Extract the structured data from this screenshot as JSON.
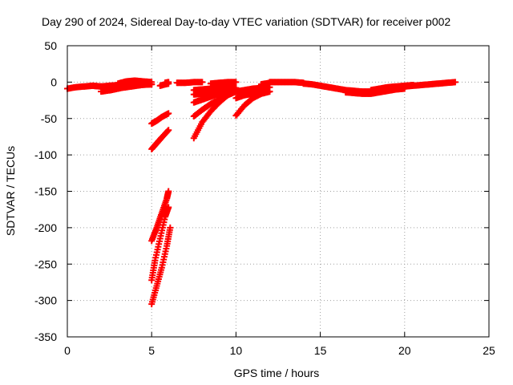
{
  "chart_data": {
    "type": "scatter",
    "title": "Day 290 of 2024, Sidereal Day-to-day VTEC variation (SDTVAR) for receiver p002",
    "xlabel": "GPS time / hours",
    "ylabel": "SDTVAR / TECUs",
    "xlim": [
      0,
      25
    ],
    "ylim": [
      -350,
      50
    ],
    "xticks": [
      0,
      5,
      10,
      15,
      20,
      25
    ],
    "yticks": [
      50,
      0,
      -50,
      -100,
      -150,
      -200,
      -250,
      -300,
      -350
    ],
    "xtick_labels": [
      "0",
      "5",
      "10",
      "15",
      "20",
      "25"
    ],
    "ytick_labels": [
      "50",
      "0",
      "-50",
      "-100",
      "-150",
      "-200",
      "-250",
      "-300",
      "-350"
    ],
    "grid": true,
    "marker": "plus",
    "series": [
      {
        "name": "p002",
        "color": "#ff0000",
        "segments": [
          {
            "x": [
              0.0,
              0.5,
              1.0,
              1.5,
              2.0,
              2.5
            ],
            "y": [
              -9,
              -7,
              -6,
              -5,
              -6,
              -7
            ]
          },
          {
            "x": [
              1.5,
              2.0,
              2.5,
              3.0,
              3.5,
              4.0,
              4.5,
              5.0
            ],
            "y": [
              -5,
              -6,
              -5,
              -4,
              -3,
              -3,
              -3,
              -3
            ]
          },
          {
            "x": [
              2.0,
              2.6,
              3.2,
              3.8,
              4.4,
              5.0
            ],
            "y": [
              -13,
              -11,
              -8,
              -6,
              -4,
              -3
            ]
          },
          {
            "x": [
              3.0,
              3.5,
              4.0,
              4.5,
              5.0
            ],
            "y": [
              -2,
              1,
              2,
              1,
              0
            ]
          },
          {
            "x": [
              5.0,
              5.3,
              5.6,
              6.0
            ],
            "y": [
              -57,
              -53,
              -48,
              -43
            ]
          },
          {
            "x": [
              5.0,
              5.3,
              5.6,
              6.0
            ],
            "y": [
              -92,
              -84,
              -76,
              -66
            ]
          },
          {
            "x": [
              5.0,
              5.3,
              5.6,
              5.9,
              6.0
            ],
            "y": [
              -218,
              -200,
              -180,
              -160,
              -150
            ]
          },
          {
            "x": [
              5.0,
              5.2,
              5.5,
              5.8,
              6.0
            ],
            "y": [
              -272,
              -245,
              -215,
              -185,
              -172
            ]
          },
          {
            "x": [
              5.0,
              5.3,
              5.6,
              5.9,
              6.1
            ],
            "y": [
              -305,
              -280,
              -255,
              -225,
              -200
            ]
          },
          {
            "x": [
              5.5,
              5.8,
              6.0
            ],
            "y": [
              -5,
              -3,
              -2
            ]
          },
          {
            "x": [
              5.8,
              6.0
            ],
            "y": [
              -1,
              0
            ]
          },
          {
            "x": [
              6.5,
              7.0,
              7.5,
              8.0
            ],
            "y": [
              -1,
              -1,
              0,
              0
            ]
          },
          {
            "x": [
              7.5,
              8.0,
              8.5,
              9.0,
              9.5,
              10.0
            ],
            "y": [
              -77,
              -55,
              -40,
              -28,
              -18,
              -12
            ]
          },
          {
            "x": [
              7.5,
              8.0,
              8.5,
              9.0,
              9.5,
              10.0
            ],
            "y": [
              -47,
              -38,
              -30,
              -24,
              -18,
              -13
            ]
          },
          {
            "x": [
              7.5,
              8.0,
              8.5,
              9.0,
              9.5,
              10.0
            ],
            "y": [
              -28,
              -24,
              -20,
              -16,
              -13,
              -10
            ]
          },
          {
            "x": [
              7.5,
              8.0,
              8.5,
              9.0,
              9.5,
              10.0
            ],
            "y": [
              -17,
              -16,
              -14,
              -12,
              -11,
              -10
            ]
          },
          {
            "x": [
              7.5,
              8.0,
              8.5,
              9.0,
              9.5,
              10.0
            ],
            "y": [
              -11,
              -10,
              -9,
              -9,
              -8,
              -8
            ]
          },
          {
            "x": [
              8.5,
              9.0,
              9.5,
              10.0
            ],
            "y": [
              -2,
              -1,
              0,
              0
            ]
          },
          {
            "x": [
              10.0,
              10.5,
              11.0,
              11.5,
              12.0
            ],
            "y": [
              -46,
              -32,
              -22,
              -16,
              -13
            ]
          },
          {
            "x": [
              10.0,
              10.5,
              11.0,
              11.5,
              12.0
            ],
            "y": [
              -22,
              -18,
              -16,
              -14,
              -13
            ]
          },
          {
            "x": [
              10.0,
              10.5,
              11.0,
              11.5,
              12.0
            ],
            "y": [
              -13,
              -11,
              -9,
              -8,
              -7
            ]
          },
          {
            "x": [
              11.5,
              12.0
            ],
            "y": [
              -3,
              -1
            ]
          },
          {
            "x": [
              12.0,
              12.5,
              13.0,
              13.5,
              14.0
            ],
            "y": [
              0,
              0,
              0,
              0,
              -1
            ]
          },
          {
            "x": [
              14.0,
              14.5,
              15.0,
              15.5,
              16.0,
              16.5,
              17.0,
              17.5,
              18.0,
              18.5
            ],
            "y": [
              -2,
              -3,
              -5,
              -7,
              -9,
              -11,
              -12,
              -13,
              -13,
              -12
            ]
          },
          {
            "x": [
              16.5,
              17.0,
              17.5,
              18.0,
              18.5,
              19.0,
              19.5,
              20.0
            ],
            "y": [
              -14,
              -15,
              -16,
              -16,
              -14,
              -12,
              -10,
              -9
            ]
          },
          {
            "x": [
              18.0,
              18.5,
              19.0,
              19.5,
              20.0,
              20.5
            ],
            "y": [
              -11,
              -9,
              -7,
              -6,
              -5,
              -4
            ]
          },
          {
            "x": [
              20.0,
              20.5,
              21.0,
              21.5,
              22.0,
              22.5,
              23.0
            ],
            "y": [
              -6,
              -5,
              -4,
              -3,
              -2,
              -1,
              0
            ]
          }
        ]
      }
    ]
  }
}
